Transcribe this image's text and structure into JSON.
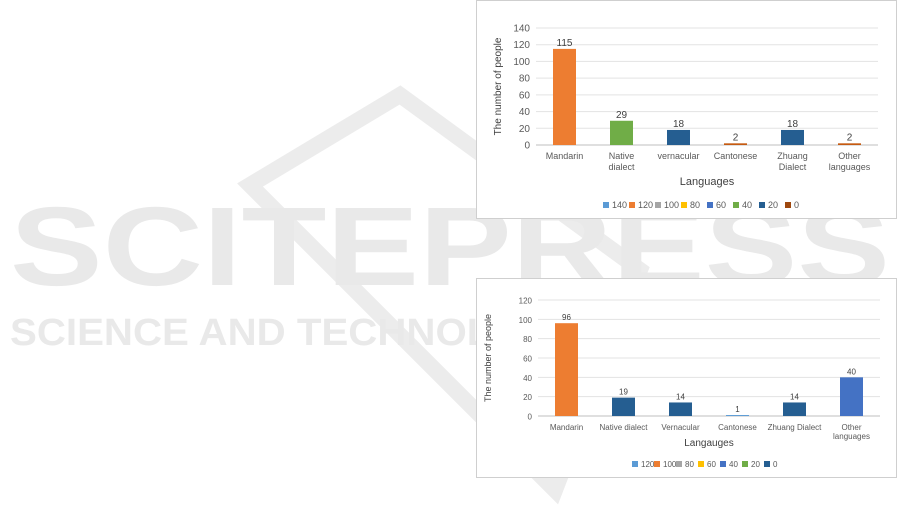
{
  "watermark": {
    "line1": "SCITEPRESS",
    "line2": "SCIENCE AND TECHNOLOGY PUBLICATIONS"
  },
  "chart_data": [
    {
      "type": "bar",
      "categories": [
        "Mandarin",
        "Native dialect",
        "vernacular",
        "Cantonese",
        "Zhuang Dialect",
        "Other languages"
      ],
      "category_lines": [
        [
          "Mandarin"
        ],
        [
          "Native",
          "dialect"
        ],
        [
          "vernacular"
        ],
        [
          "Cantonese"
        ],
        [
          "Zhuang",
          "Dialect"
        ],
        [
          "Other",
          "languages"
        ]
      ],
      "values": [
        115,
        29,
        18,
        2,
        18,
        2
      ],
      "data_labels": [
        "115",
        "29",
        "18",
        "2",
        "18",
        "2"
      ],
      "bar_colors": [
        "#ed7d31",
        "#70ad47",
        "#255e91",
        "#c55a11",
        "#255e91",
        "#c55a11"
      ],
      "xlabel": "Languages",
      "ylabel": "The number of people",
      "ylim": [
        0,
        140
      ],
      "yticks": [
        "0",
        "20",
        "40",
        "60",
        "80",
        "100",
        "120",
        "140"
      ],
      "grid": true,
      "legend_position": "bottom",
      "legend": [
        {
          "label": "140",
          "color": "#5b9bd5"
        },
        {
          "label": "120",
          "color": "#ed7d31"
        },
        {
          "label": "100",
          "color": "#a5a5a5"
        },
        {
          "label": "80",
          "color": "#ffc000"
        },
        {
          "label": "60",
          "color": "#4472c4"
        },
        {
          "label": "40",
          "color": "#70ad47"
        },
        {
          "label": "20",
          "color": "#255e91"
        },
        {
          "label": "0",
          "color": "#9e480e"
        }
      ]
    },
    {
      "type": "bar",
      "categories": [
        "Mandarin",
        "Native dialect",
        "Vernacular",
        "Cantonese",
        "Zhuang Dialect",
        "Other languages"
      ],
      "category_lines": [
        [
          "Mandarin"
        ],
        [
          "Native dialect"
        ],
        [
          "Vernacular"
        ],
        [
          "Cantonese"
        ],
        [
          "Zhuang Dialect"
        ],
        [
          "Other",
          "languages"
        ]
      ],
      "values": [
        96,
        19,
        14,
        1,
        14,
        40
      ],
      "data_labels": [
        "96",
        "19",
        "14",
        "1",
        "14",
        "40"
      ],
      "bar_colors": [
        "#ed7d31",
        "#255e91",
        "#255e91",
        "#5b9bd5",
        "#255e91",
        "#4472c4"
      ],
      "xlabel": "Langauges",
      "ylabel": "The number of people",
      "ylim": [
        0,
        120
      ],
      "yticks": [
        "0",
        "20",
        "40",
        "60",
        "80",
        "100",
        "120"
      ],
      "grid": true,
      "legend_position": "bottom",
      "legend": [
        {
          "label": "120",
          "color": "#5b9bd5"
        },
        {
          "label": "100",
          "color": "#ed7d31"
        },
        {
          "label": "80",
          "color": "#a5a5a5"
        },
        {
          "label": "60",
          "color": "#ffc000"
        },
        {
          "label": "40",
          "color": "#4472c4"
        },
        {
          "label": "20",
          "color": "#70ad47"
        },
        {
          "label": "0",
          "color": "#255e91"
        }
      ]
    }
  ]
}
